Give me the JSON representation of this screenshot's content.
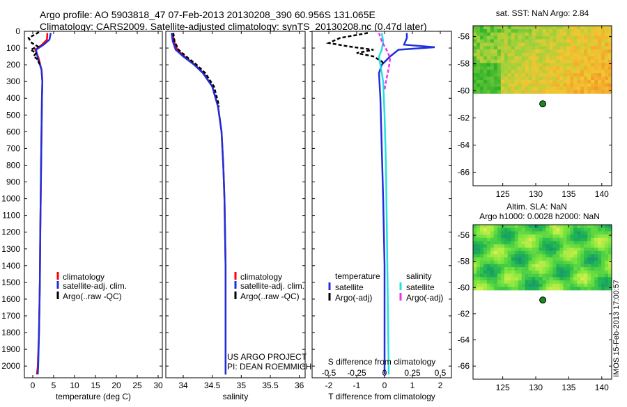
{
  "header": {
    "line1": "Argo profile: AO 5903818_47 07-Feb-2013 20130208_390 60.956S 131.065E",
    "line2": "Climatology: CARS2009. Satellite-adjusted climatology: synTS_20130208.nc (0.47d later)"
  },
  "side_text": "IMOS 15-Feb-2013 17:00:57",
  "colors": {
    "climatology": "#ff0000",
    "satellite": "#1f2fdc",
    "argo": "#000000",
    "salinity_satellite": "#22e0e0",
    "salinity_argo": "#ee33ee",
    "marker": "#1a8a1a"
  },
  "chart_data": [
    {
      "type": "line",
      "id": "temperature",
      "xlabel": "temperature (deg C)",
      "xlim": [
        -2,
        31
      ],
      "xticks": [
        0,
        5,
        10,
        15,
        20,
        25,
        30
      ],
      "ylim": [
        2070,
        0
      ],
      "yticks": [
        0,
        100,
        200,
        300,
        400,
        500,
        600,
        700,
        800,
        900,
        1000,
        1100,
        1200,
        1300,
        1400,
        1500,
        1600,
        1700,
        1800,
        1900,
        2000
      ],
      "legend": [
        "climatology",
        "satellite-adj. clim.",
        "Argo(..raw -QC)"
      ],
      "series": [
        {
          "name": "climatology",
          "x": [
            3.5,
            3.4,
            2.2,
            0.6,
            1.4,
            2.1,
            2.3,
            2.2,
            2.1,
            2.0,
            1.9,
            1.8,
            1.7,
            1.5,
            1.2,
            1.0
          ],
          "y": [
            10,
            50,
            80,
            110,
            160,
            230,
            300,
            400,
            600,
            800,
            1000,
            1200,
            1500,
            1800,
            2000,
            2050
          ]
        },
        {
          "name": "satellite-adj. clim.",
          "x": [
            4.3,
            4.0,
            2.6,
            0.8,
            1.2,
            2.1,
            2.3,
            2.2,
            2.1,
            2.0,
            1.9,
            1.8,
            1.7,
            1.5,
            1.3,
            1.2
          ],
          "y": [
            10,
            50,
            80,
            110,
            160,
            230,
            300,
            400,
            600,
            800,
            1000,
            1200,
            1500,
            1800,
            2000,
            2050
          ]
        },
        {
          "name": "Argo(..raw -QC)",
          "x": [
            1.5,
            -1.0,
            -0.2,
            1.2,
            -0.5,
            0.8,
            0.2,
            1.3,
            1.5,
            1.8
          ],
          "y": [
            5,
            40,
            70,
            90,
            110,
            130,
            150,
            170,
            190,
            200
          ]
        }
      ]
    },
    {
      "type": "line",
      "id": "salinity",
      "xlabel": "salinity",
      "xlim": [
        33.7,
        36.1
      ],
      "xticks": [
        34,
        34.5,
        35,
        35.5,
        36
      ],
      "legend": [
        "climatology",
        "satellite-adj. clim.",
        "Argo(..raw -QC)"
      ],
      "annotation": [
        "US ARGO PROJECT",
        "PI: DEAN ROEMMICH"
      ],
      "series": [
        {
          "name": "climatology",
          "x": [
            33.82,
            33.84,
            33.9,
            34.02,
            34.2,
            34.35,
            34.5,
            34.6,
            34.66,
            34.69,
            34.71,
            34.72,
            34.73,
            34.73,
            34.73,
            34.73
          ],
          "y": [
            10,
            60,
            110,
            150,
            200,
            250,
            330,
            450,
            600,
            800,
            1000,
            1200,
            1400,
            1700,
            1950,
            2050
          ]
        },
        {
          "name": "satellite-adj. clim.",
          "x": [
            33.8,
            33.82,
            33.87,
            34.0,
            34.19,
            34.34,
            34.5,
            34.6,
            34.66,
            34.69,
            34.71,
            34.72,
            34.73,
            34.73,
            34.73,
            34.73
          ],
          "y": [
            10,
            60,
            110,
            150,
            200,
            250,
            330,
            450,
            600,
            800,
            1000,
            1200,
            1400,
            1700,
            1950,
            2050
          ]
        },
        {
          "name": "Argo(..raw -QC)",
          "x": [
            33.83,
            33.85,
            33.92,
            34.05,
            34.23,
            34.38,
            34.53,
            34.62
          ],
          "y": [
            10,
            60,
            110,
            150,
            200,
            250,
            330,
            450
          ]
        }
      ]
    },
    {
      "type": "line",
      "id": "differences",
      "xlabel": "T difference from climatology",
      "top_label": "S difference from climatology",
      "xlim": [
        -2.6,
        2.4
      ],
      "xticks": [
        -2,
        -1,
        0,
        1,
        2
      ],
      "top_ticks": [
        {
          "label": "-0.5",
          "value": -2
        },
        {
          "label": "-0.25",
          "value": -1
        },
        {
          "label": "0",
          "value": 0
        },
        {
          "label": "0.25",
          "value": 1
        },
        {
          "label": "0.5",
          "value": 2
        }
      ],
      "legend_headers": [
        "temperature",
        "salinity"
      ],
      "legend": [
        "satellite",
        "Argo(-adj)",
        "satellite",
        "Argo(-adj)"
      ],
      "series": [
        {
          "name": "temperature satellite",
          "x": [
            0.8,
            0.8,
            0.7,
            1.8,
            0.5,
            0.2,
            -0.1,
            -0.2,
            -0.15,
            -0.1,
            -0.05,
            0,
            0,
            0
          ],
          "y": [
            10,
            40,
            80,
            95,
            110,
            150,
            200,
            250,
            400,
            700,
            1000,
            1400,
            1800,
            2050
          ]
        },
        {
          "name": "temperature Argo(-adj)",
          "x": [
            -0.6,
            -1.6,
            -2.0,
            -1.3,
            -0.4,
            -1.0,
            -0.4,
            -0.1,
            0
          ],
          "y": [
            10,
            40,
            70,
            90,
            110,
            130,
            150,
            180,
            200
          ]
        },
        {
          "name": "salinity satellite",
          "x": [
            -0.1,
            -0.05,
            -0.1,
            -0.2,
            -0.15,
            -0.05,
            0,
            0.05,
            0.1,
            0.15
          ],
          "y": [
            10,
            60,
            110,
            150,
            200,
            300,
            500,
            800,
            1400,
            2050
          ]
        },
        {
          "name": "salinity Argo(-adj)",
          "x": [
            -0.2,
            -0.1,
            0.1,
            0.2,
            0.15,
            0.05,
            0
          ],
          "y": [
            10,
            60,
            120,
            160,
            220,
            300,
            350
          ]
        }
      ]
    },
    {
      "type": "heatmap",
      "id": "sst",
      "title": "sat. SST: NaN Argo: 2.84",
      "xlim": [
        120.5,
        141.5
      ],
      "ylim": [
        -67,
        -55.2
      ],
      "xticks": [
        125,
        130,
        135,
        140
      ],
      "yticks": [
        -56,
        -58,
        -60,
        -62,
        -64,
        -66
      ],
      "data_extent_lat": [
        -60.2,
        -55.2
      ],
      "argo_position": {
        "lon": 131.065,
        "lat": -60.956
      }
    },
    {
      "type": "heatmap",
      "id": "sla",
      "title_lines": [
        "Altim. SLA: NaN",
        "Argo h1000: 0.0028 h2000: NaN"
      ],
      "xlim": [
        120.5,
        141.5
      ],
      "ylim": [
        -67,
        -55.2
      ],
      "xticks": [
        125,
        130,
        135,
        140
      ],
      "yticks": [
        -56,
        -58,
        -60,
        -62,
        -64,
        -66
      ],
      "data_extent_lat": [
        -60.2,
        -55.2
      ],
      "argo_position": {
        "lon": 131.065,
        "lat": -60.956
      }
    }
  ]
}
